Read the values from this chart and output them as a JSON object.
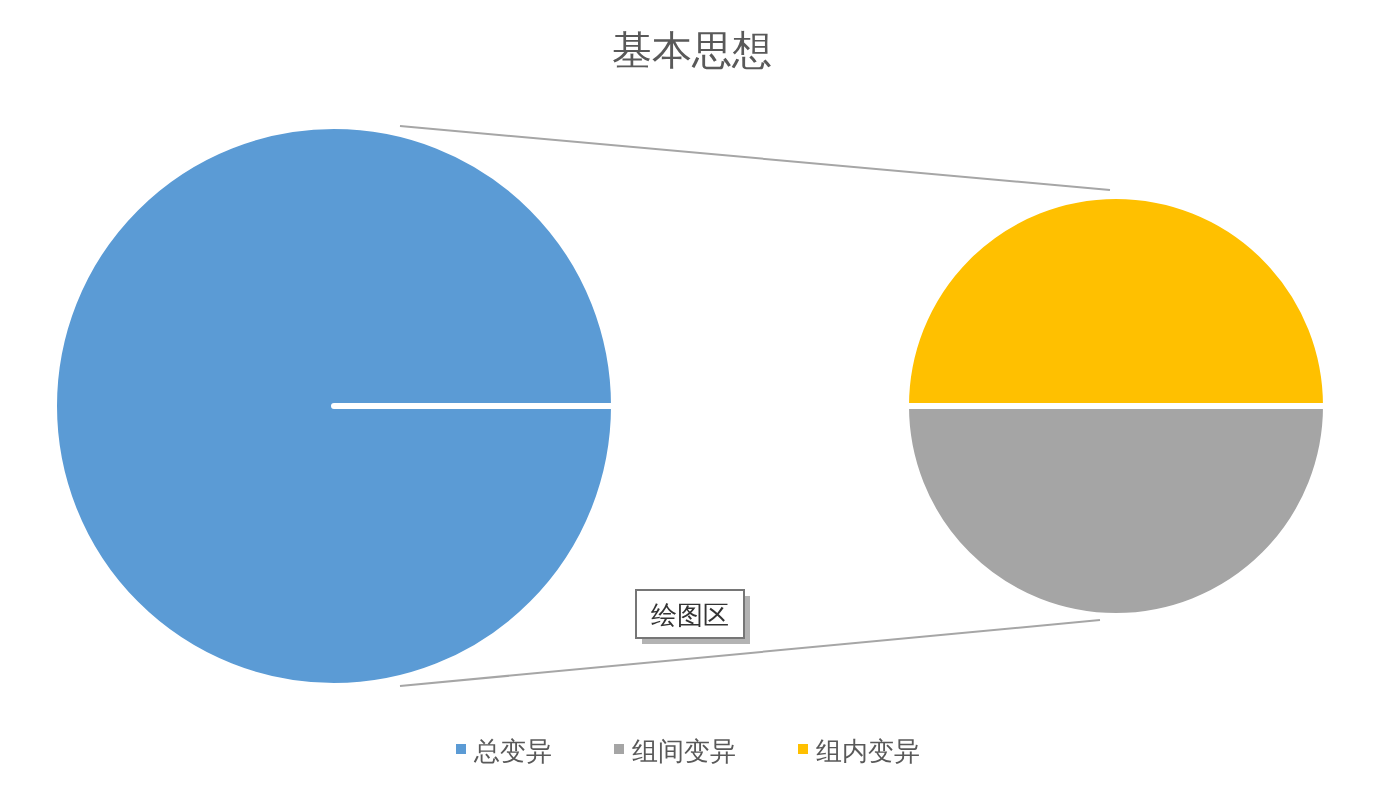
{
  "chart_data": [
    {
      "type": "pie",
      "title": "基本思想",
      "categories": [
        "总变异"
      ],
      "values": [
        100
      ],
      "colors": [
        "#5b9bd5"
      ],
      "legend": "bottom",
      "annotations": [
        "绘图区"
      ]
    },
    {
      "type": "pie",
      "categories": [
        "组间变异",
        "组内变异"
      ],
      "values": [
        50,
        50
      ],
      "colors": [
        "#a5a5a5",
        "#ffc000"
      ],
      "legend": "bottom"
    }
  ]
}
